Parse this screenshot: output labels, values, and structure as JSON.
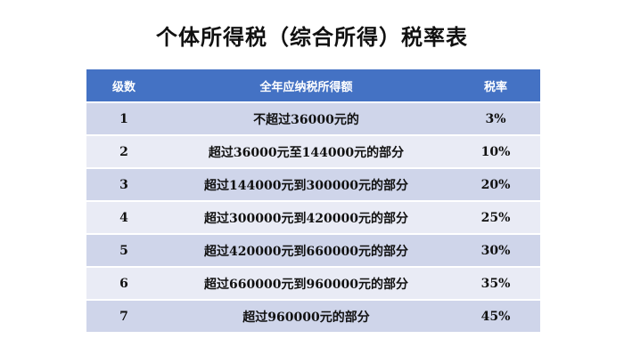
{
  "title": "个体所得税（综合所得）税率表",
  "table": {
    "headers": {
      "level": "级数",
      "income": "全年应纳税所得额",
      "rate": "税率"
    },
    "rows": [
      {
        "level": "1",
        "income": "不超过36000元的",
        "rate": "3%"
      },
      {
        "level": "2",
        "income": "超过36000元至144000元的部分",
        "rate": "10%"
      },
      {
        "level": "3",
        "income": "超过144000元到300000元的部分",
        "rate": "20%"
      },
      {
        "level": "4",
        "income": "超过300000元到420000元的部分",
        "rate": "25%"
      },
      {
        "level": "5",
        "income": "超过420000元到660000元的部分",
        "rate": "30%"
      },
      {
        "level": "6",
        "income": "超过660000元到960000元的部分",
        "rate": "35%"
      },
      {
        "level": "7",
        "income": "超过960000元的部分",
        "rate": "45%"
      }
    ]
  },
  "colors": {
    "header_bg": "#4472c4",
    "row_odd_bg": "#cfd5ea",
    "row_even_bg": "#e9ebf5"
  }
}
